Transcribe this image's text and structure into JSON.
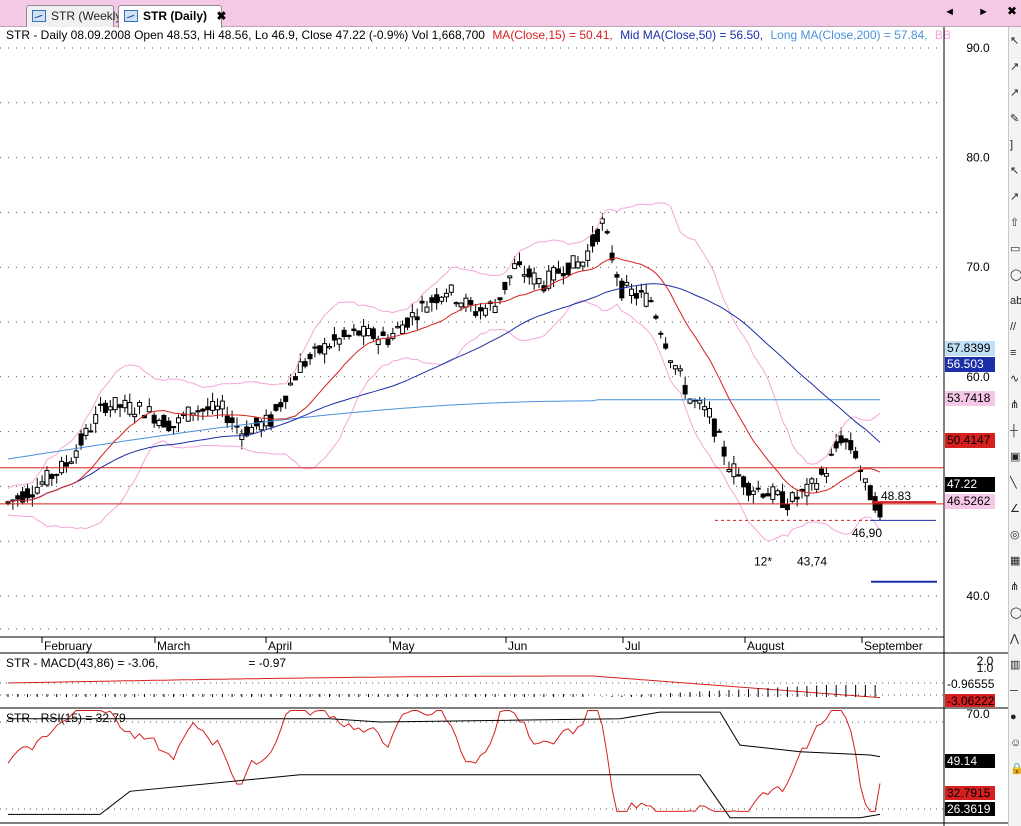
{
  "tabs": [
    {
      "label": "STR (Weekly)",
      "active": false
    },
    {
      "label": "STR (Daily)",
      "active": true
    }
  ],
  "tab_close_glyph": "✖",
  "window_controls": {
    "scroll_arrows": "◄ ►",
    "close": "✖"
  },
  "header": {
    "symbol_info": "STR - Daily 08.09.2008 Open 48.53, Hi 48.56, Lo 46.9, Close 47.22 (-0.9%) Vol 1,668,700",
    "ma_short": "MA(Close,15) = 50.41,",
    "ma_mid": "Mid MA(Close,50) = 56.50,",
    "ma_long": "Long MA(Close,200) = 57.84,",
    "bb_cut": "BB"
  },
  "colors": {
    "up": "#ffffff",
    "down": "#000000",
    "ma_short": "#d62020",
    "ma_mid": "#1a2fa8",
    "ma_long": "#4a90d9",
    "bollinger": "#f4a6d8",
    "hline": "#d62020",
    "tab_bar": "#f4c8e6"
  },
  "price_axis": {
    "ticks": [
      "90.0",
      "80.0",
      "70.0",
      "60.0",
      "40.0"
    ],
    "partial_tick": "0.0"
  },
  "month_labels": [
    "February",
    "March",
    "April",
    "May",
    "Jun",
    "Jul",
    "August",
    "September"
  ],
  "price_boxes": [
    {
      "name": "long-ma-value",
      "text": "57.8399"
    },
    {
      "name": "mid-ma-value",
      "text": "56.503"
    },
    {
      "name": "upper-band-value",
      "text": "53.7418"
    },
    {
      "name": "short-ma-value",
      "text": "50.4147"
    },
    {
      "name": "close-value",
      "text": "47.22"
    },
    {
      "name": "lower-band-value",
      "text": "46.5262"
    }
  ],
  "annotations": {
    "high_label": "48.83",
    "low_label": "46,90",
    "august_low": "43,74",
    "marker": "12*"
  },
  "macd": {
    "label": "STR - MACD(43,86) = -3.06,",
    "signal": "= -0.97",
    "ticks": [
      "2.0",
      "1.0"
    ],
    "boxes": [
      "-0.96555",
      "-3.06222"
    ]
  },
  "rsi": {
    "label": "STR - RSI(15) = 32.79",
    "ticks": [
      "70.0"
    ],
    "boxes": [
      "49.14",
      "32.7915",
      "26.3619"
    ]
  },
  "chart_data": {
    "type": "candlestick",
    "title": "STR - Daily",
    "ylim": [
      37.5,
      92
    ],
    "x_labels": [
      "February",
      "March",
      "April",
      "May",
      "Jun",
      "Jul",
      "August",
      "September"
    ],
    "hlines": [
      51.7,
      48.4,
      46.9
    ],
    "overlays": [
      "MA(Close,15)",
      "Mid MA(Close,50)",
      "Long MA(Close,200)",
      "Bollinger Bands"
    ]
  },
  "toolbar_icons": [
    "cursor-icon",
    "line-icon",
    "arrow-icon",
    "pen-icon",
    "bracket-icon",
    "cursor-alt-icon",
    "ray-icon",
    "arrow-up-icon",
    "rectangle-icon",
    "ellipse-icon",
    "text-icon",
    "channel-icon",
    "fib-icon",
    "wave-icon",
    "pitchfork-icon",
    "gann-icon",
    "box-icon",
    "regression-icon",
    "angle-icon",
    "spiral-icon",
    "grid-icon",
    "pitch-alt-icon",
    "cycle-icon",
    "zigzag-icon",
    "histogram-icon",
    "minus-icon",
    "color-icon",
    "smile-icon",
    "lock-icon"
  ],
  "toolbar_glyphs": [
    "↖",
    "↗",
    "↗",
    "✎",
    "]",
    "↖",
    "↗",
    "⇧",
    "▭",
    "◯",
    "ab",
    "//",
    "≡",
    "∿",
    "⋔",
    "┼",
    "▣",
    "╲",
    "∠",
    "◎",
    "▦",
    "⋔",
    "◯",
    "⋀",
    "▥",
    "─",
    "●",
    "☺",
    "🔒"
  ]
}
